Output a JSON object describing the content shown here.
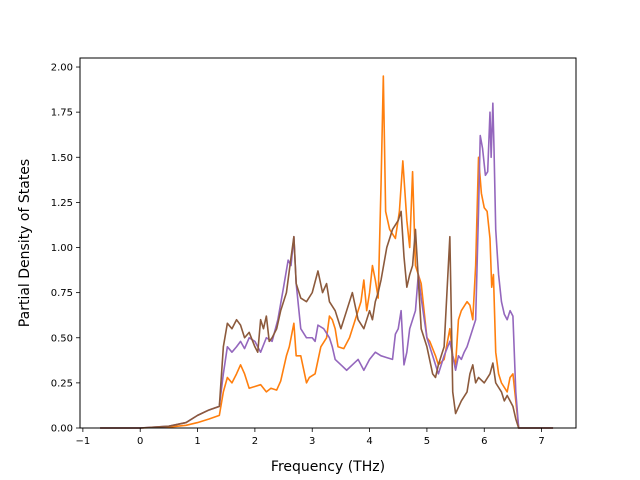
{
  "chart_data": {
    "type": "line",
    "title": "",
    "xlabel": "Frequency (THz)",
    "ylabel": "Partial Density of States",
    "xlim": [
      -1.05,
      7.6
    ],
    "ylim": [
      0.0,
      2.05
    ],
    "xticks": [
      -1,
      0,
      1,
      2,
      3,
      4,
      5,
      6,
      7
    ],
    "xtick_labels": [
      "−1",
      "0",
      "1",
      "2",
      "3",
      "4",
      "5",
      "6",
      "7"
    ],
    "yticks": [
      0.0,
      0.25,
      0.5,
      0.75,
      1.0,
      1.25,
      1.5,
      1.75,
      2.0
    ],
    "ytick_labels": [
      "0.00",
      "0.25",
      "0.50",
      "0.75",
      "1.00",
      "1.25",
      "1.50",
      "1.75",
      "2.00"
    ],
    "grid": false,
    "legend": "none",
    "series": [
      {
        "color": "#ff7f0e",
        "x": [
          -0.7,
          0.0,
          0.5,
          0.8,
          1.0,
          1.2,
          1.38,
          1.45,
          1.52,
          1.6,
          1.68,
          1.75,
          1.82,
          1.9,
          2.0,
          2.1,
          2.2,
          2.28,
          2.38,
          2.45,
          2.55,
          2.6,
          2.68,
          2.72,
          2.8,
          2.9,
          2.95,
          3.05,
          3.15,
          3.25,
          3.3,
          3.35,
          3.4,
          3.45,
          3.55,
          3.65,
          3.75,
          3.85,
          3.9,
          3.95,
          4.0,
          4.05,
          4.1,
          4.15,
          4.2,
          4.24,
          4.28,
          4.35,
          4.45,
          4.52,
          4.58,
          4.65,
          4.7,
          4.75,
          4.8,
          4.85,
          4.9,
          5.0,
          5.05,
          5.15,
          5.2,
          5.3,
          5.4,
          5.45,
          5.5,
          5.55,
          5.6,
          5.7,
          5.75,
          5.8,
          5.85,
          5.9,
          5.95,
          6.0,
          6.05,
          6.1,
          6.13,
          6.16,
          6.2,
          6.25,
          6.3,
          6.4,
          6.45,
          6.5,
          6.55,
          6.6,
          7.2
        ],
        "y": [
          0.0,
          0.0,
          0.005,
          0.015,
          0.03,
          0.05,
          0.07,
          0.2,
          0.28,
          0.25,
          0.3,
          0.35,
          0.3,
          0.22,
          0.23,
          0.24,
          0.2,
          0.22,
          0.21,
          0.26,
          0.4,
          0.45,
          0.58,
          0.4,
          0.4,
          0.25,
          0.28,
          0.3,
          0.45,
          0.5,
          0.62,
          0.6,
          0.55,
          0.45,
          0.44,
          0.5,
          0.6,
          0.7,
          0.82,
          0.65,
          0.75,
          0.9,
          0.82,
          0.72,
          1.35,
          1.95,
          1.2,
          1.1,
          1.05,
          1.2,
          1.48,
          1.15,
          1.0,
          1.42,
          0.9,
          0.85,
          0.8,
          0.5,
          0.48,
          0.4,
          0.35,
          0.38,
          0.55,
          0.4,
          0.35,
          0.6,
          0.65,
          0.7,
          0.68,
          0.6,
          0.9,
          1.5,
          1.3,
          1.22,
          1.2,
          1.05,
          0.78,
          0.85,
          0.42,
          0.3,
          0.25,
          0.2,
          0.28,
          0.3,
          0.15,
          0.0,
          0.0
        ]
      },
      {
        "color": "#9467bd",
        "x": [
          -0.7,
          0.0,
          0.5,
          0.8,
          1.0,
          1.2,
          1.38,
          1.45,
          1.52,
          1.6,
          1.68,
          1.75,
          1.82,
          1.9,
          2.0,
          2.1,
          2.2,
          2.3,
          2.4,
          2.5,
          2.58,
          2.63,
          2.68,
          2.72,
          2.8,
          2.9,
          3.0,
          3.05,
          3.1,
          3.2,
          3.3,
          3.35,
          3.4,
          3.5,
          3.6,
          3.7,
          3.8,
          3.9,
          4.0,
          4.1,
          4.2,
          4.3,
          4.4,
          4.45,
          4.5,
          4.55,
          4.6,
          4.65,
          4.7,
          4.8,
          4.85,
          4.9,
          5.0,
          5.1,
          5.2,
          5.3,
          5.4,
          5.5,
          5.55,
          5.6,
          5.65,
          5.7,
          5.8,
          5.85,
          5.9,
          5.93,
          5.97,
          6.02,
          6.06,
          6.1,
          6.12,
          6.15,
          6.17,
          6.2,
          6.25,
          6.3,
          6.35,
          6.4,
          6.45,
          6.5,
          6.55,
          6.6,
          7.2
        ],
        "y": [
          0.0,
          0.0,
          0.01,
          0.03,
          0.07,
          0.1,
          0.12,
          0.3,
          0.45,
          0.42,
          0.45,
          0.48,
          0.44,
          0.5,
          0.48,
          0.42,
          0.5,
          0.48,
          0.6,
          0.78,
          0.93,
          0.9,
          1.06,
          0.8,
          0.55,
          0.5,
          0.5,
          0.48,
          0.57,
          0.55,
          0.5,
          0.45,
          0.38,
          0.35,
          0.32,
          0.35,
          0.38,
          0.32,
          0.38,
          0.42,
          0.4,
          0.39,
          0.38,
          0.52,
          0.55,
          0.65,
          0.35,
          0.42,
          0.55,
          0.65,
          0.85,
          0.72,
          0.5,
          0.4,
          0.3,
          0.4,
          0.48,
          0.32,
          0.4,
          0.38,
          0.42,
          0.45,
          0.55,
          0.6,
          1.2,
          1.62,
          1.55,
          1.4,
          1.42,
          1.75,
          1.5,
          1.8,
          1.55,
          1.1,
          0.85,
          0.7,
          0.63,
          0.6,
          0.65,
          0.62,
          0.2,
          0.0,
          0.0
        ]
      },
      {
        "color": "#8c5a3c",
        "x": [
          -0.7,
          0.0,
          0.5,
          0.8,
          1.0,
          1.2,
          1.38,
          1.45,
          1.52,
          1.6,
          1.68,
          1.75,
          1.82,
          1.9,
          2.0,
          2.05,
          2.1,
          2.15,
          2.2,
          2.25,
          2.3,
          2.38,
          2.45,
          2.55,
          2.62,
          2.68,
          2.72,
          2.8,
          2.9,
          3.0,
          3.1,
          3.18,
          3.25,
          3.3,
          3.4,
          3.5,
          3.6,
          3.7,
          3.8,
          3.9,
          4.0,
          4.05,
          4.1,
          4.15,
          4.2,
          4.3,
          4.4,
          4.5,
          4.55,
          4.6,
          4.65,
          4.7,
          4.75,
          4.8,
          4.9,
          5.0,
          5.1,
          5.15,
          5.2,
          5.25,
          5.3,
          5.4,
          5.45,
          5.5,
          5.6,
          5.7,
          5.75,
          5.8,
          5.85,
          5.9,
          6.0,
          6.1,
          6.15,
          6.2,
          6.3,
          6.35,
          6.4,
          6.45,
          6.5,
          6.55,
          6.6,
          7.2
        ],
        "y": [
          0.0,
          0.0,
          0.01,
          0.03,
          0.07,
          0.1,
          0.12,
          0.45,
          0.58,
          0.55,
          0.6,
          0.57,
          0.5,
          0.53,
          0.45,
          0.42,
          0.6,
          0.55,
          0.62,
          0.48,
          0.5,
          0.55,
          0.65,
          0.75,
          0.92,
          1.06,
          0.8,
          0.72,
          0.7,
          0.75,
          0.87,
          0.75,
          0.8,
          0.7,
          0.65,
          0.55,
          0.65,
          0.75,
          0.6,
          0.55,
          0.65,
          0.6,
          0.7,
          0.75,
          0.82,
          1.0,
          1.1,
          1.15,
          1.2,
          0.95,
          0.78,
          0.85,
          0.9,
          1.1,
          0.55,
          0.45,
          0.3,
          0.28,
          0.35,
          0.4,
          0.45,
          1.06,
          0.2,
          0.08,
          0.15,
          0.2,
          0.3,
          0.35,
          0.25,
          0.28,
          0.25,
          0.3,
          0.36,
          0.25,
          0.2,
          0.15,
          0.18,
          0.15,
          0.12,
          0.05,
          0.0,
          0.0
        ]
      }
    ]
  }
}
